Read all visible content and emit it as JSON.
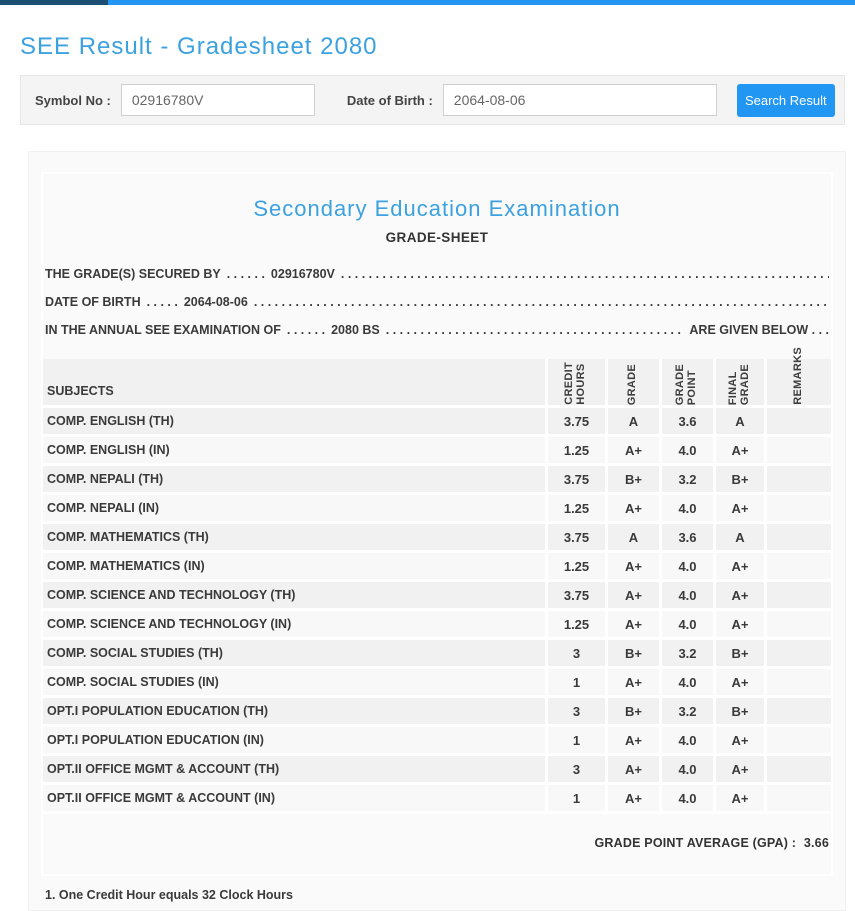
{
  "colors": {
    "accent_blue": "#2196f3",
    "heading_blue": "#3ba1df",
    "topbar_dark": "#1c4f72"
  },
  "page_title": "SEE Result - Gradesheet 2080",
  "search_form": {
    "symbol_label": "Symbol No :",
    "symbol_value": "02916780V",
    "dob_label": "Date of Birth :",
    "dob_value": "2064-08-06",
    "button_label": "Search Result"
  },
  "gradesheet": {
    "title": "Secondary Education Examination",
    "subtitle": "GRADE-SHEET",
    "dot_fill": ". . . . . . . . . . . . . . . . . . . . . . . . . . . . . . . . . . . . . . . . . . . . . . . . . . . . . . . . . . . . . . . . . . . . . . . . . . . . . . . . . . . . . . . . . . . . . . . . . . . . . . . . . . . . . . . . . . . . . . . .",
    "info_lines": [
      {
        "prefix": "THE GRADE(S) SECURED BY",
        "dots": ". . . . . .",
        "value": "02916780V",
        "suffix": ""
      },
      {
        "prefix": "DATE OF BIRTH",
        "dots": ". . . . .",
        "value": "2064-08-06",
        "suffix": ""
      },
      {
        "prefix": "IN THE ANNUAL SEE EXAMINATION OF",
        "dots": ". . . . . .",
        "value": "2080 BS",
        "suffix": "ARE GIVEN BELOW . . ."
      }
    ],
    "table": {
      "subjects_header": "SUBJECTS",
      "vertical_headers": [
        "CREDIT\nHOURS",
        "GRADE",
        "GRADE\nPOINT",
        "FINAL\nGRADE",
        "REMARKS"
      ],
      "rows": [
        {
          "subject": "COMP. ENGLISH (TH)",
          "credit": "3.75",
          "grade": "A",
          "point": "3.6",
          "final": "A",
          "remarks": ""
        },
        {
          "subject": "COMP. ENGLISH (IN)",
          "credit": "1.25",
          "grade": "A+",
          "point": "4.0",
          "final": "A+",
          "remarks": ""
        },
        {
          "subject": "COMP. NEPALI (TH)",
          "credit": "3.75",
          "grade": "B+",
          "point": "3.2",
          "final": "B+",
          "remarks": ""
        },
        {
          "subject": "COMP. NEPALI (IN)",
          "credit": "1.25",
          "grade": "A+",
          "point": "4.0",
          "final": "A+",
          "remarks": ""
        },
        {
          "subject": "COMP. MATHEMATICS (TH)",
          "credit": "3.75",
          "grade": "A",
          "point": "3.6",
          "final": "A",
          "remarks": ""
        },
        {
          "subject": "COMP. MATHEMATICS (IN)",
          "credit": "1.25",
          "grade": "A+",
          "point": "4.0",
          "final": "A+",
          "remarks": ""
        },
        {
          "subject": "COMP. SCIENCE AND TECHNOLOGY (TH)",
          "credit": "3.75",
          "grade": "A+",
          "point": "4.0",
          "final": "A+",
          "remarks": ""
        },
        {
          "subject": "COMP. SCIENCE AND TECHNOLOGY (IN)",
          "credit": "1.25",
          "grade": "A+",
          "point": "4.0",
          "final": "A+",
          "remarks": ""
        },
        {
          "subject": "COMP. SOCIAL STUDIES (TH)",
          "credit": "3",
          "grade": "B+",
          "point": "3.2",
          "final": "B+",
          "remarks": ""
        },
        {
          "subject": "COMP. SOCIAL STUDIES (IN)",
          "credit": "1",
          "grade": "A+",
          "point": "4.0",
          "final": "A+",
          "remarks": ""
        },
        {
          "subject": "OPT.I POPULATION EDUCATION (TH)",
          "credit": "3",
          "grade": "B+",
          "point": "3.2",
          "final": "B+",
          "remarks": ""
        },
        {
          "subject": "OPT.I POPULATION EDUCATION (IN)",
          "credit": "1",
          "grade": "A+",
          "point": "4.0",
          "final": "A+",
          "remarks": ""
        },
        {
          "subject": "OPT.II OFFICE MGMT & ACCOUNT (TH)",
          "credit": "3",
          "grade": "A+",
          "point": "4.0",
          "final": "A+",
          "remarks": ""
        },
        {
          "subject": "OPT.II OFFICE MGMT & ACCOUNT (IN)",
          "credit": "1",
          "grade": "A+",
          "point": "4.0",
          "final": "A+",
          "remarks": ""
        }
      ]
    },
    "gpa_label": "GRADE POINT AVERAGE (GPA) :",
    "gpa_value": "3.66",
    "footnote": "1. One Credit Hour equals 32 Clock Hours"
  }
}
